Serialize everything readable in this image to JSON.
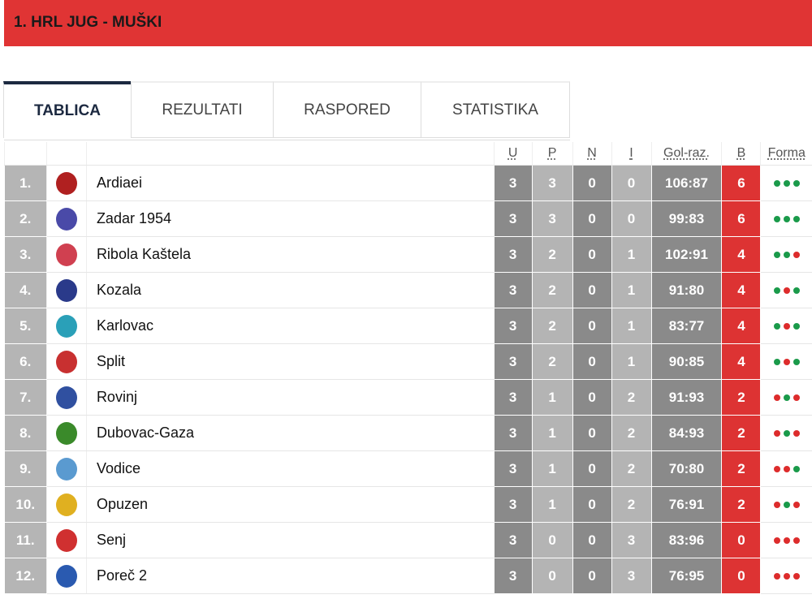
{
  "header": {
    "title": "1. HRL JUG - MUŠKI"
  },
  "tabs": [
    {
      "label": "TABLICA",
      "active": true
    },
    {
      "label": "REZULTATI"
    },
    {
      "label": "RASPORED"
    },
    {
      "label": "STATISTIKA"
    }
  ],
  "columns": {
    "u": "U",
    "p": "P",
    "n": "N",
    "i": "I",
    "goals": "Gol-raz.",
    "b": "B",
    "form": "Forma"
  },
  "colors": {
    "win": "#1a9a4a",
    "loss": "#dd2c2c",
    "points": "#dd3333",
    "header": "#e03434"
  },
  "rows": [
    {
      "rank": "1.",
      "team": "Ardiaei",
      "u": "3",
      "p": "3",
      "n": "0",
      "i": "0",
      "goals": "106:87",
      "b": "6",
      "form": "WWW",
      "logo": "#b02020"
    },
    {
      "rank": "2.",
      "team": "Zadar 1954",
      "u": "3",
      "p": "3",
      "n": "0",
      "i": "0",
      "goals": "99:83",
      "b": "6",
      "form": "WWW",
      "logo": "#4a4aa8"
    },
    {
      "rank": "3.",
      "team": "Ribola Kaštela",
      "u": "3",
      "p": "2",
      "n": "0",
      "i": "1",
      "goals": "102:91",
      "b": "4",
      "form": "WWL",
      "logo": "#d04050"
    },
    {
      "rank": "4.",
      "team": "Kozala",
      "u": "3",
      "p": "2",
      "n": "0",
      "i": "1",
      "goals": "91:80",
      "b": "4",
      "form": "WLW",
      "logo": "#2a3a8a"
    },
    {
      "rank": "5.",
      "team": "Karlovac",
      "u": "3",
      "p": "2",
      "n": "0",
      "i": "1",
      "goals": "83:77",
      "b": "4",
      "form": "WLW",
      "logo": "#2aa0b8"
    },
    {
      "rank": "6.",
      "team": "Split",
      "u": "3",
      "p": "2",
      "n": "0",
      "i": "1",
      "goals": "90:85",
      "b": "4",
      "form": "WLW",
      "logo": "#c83030"
    },
    {
      "rank": "7.",
      "team": "Rovinj",
      "u": "3",
      "p": "1",
      "n": "0",
      "i": "2",
      "goals": "91:93",
      "b": "2",
      "form": "LWL",
      "logo": "#3050a0"
    },
    {
      "rank": "8.",
      "team": "Dubovac-Gaza",
      "u": "3",
      "p": "1",
      "n": "0",
      "i": "2",
      "goals": "84:93",
      "b": "2",
      "form": "LWL",
      "logo": "#3a8a2a"
    },
    {
      "rank": "9.",
      "team": "Vodice",
      "u": "3",
      "p": "1",
      "n": "0",
      "i": "2",
      "goals": "70:80",
      "b": "2",
      "form": "LLW",
      "logo": "#5a9ad0"
    },
    {
      "rank": "10.",
      "team": "Opuzen",
      "u": "3",
      "p": "1",
      "n": "0",
      "i": "2",
      "goals": "76:91",
      "b": "2",
      "form": "LWL",
      "logo": "#e0b020"
    },
    {
      "rank": "11.",
      "team": "Senj",
      "u": "3",
      "p": "0",
      "n": "0",
      "i": "3",
      "goals": "83:96",
      "b": "0",
      "form": "LLL",
      "logo": "#d03030"
    },
    {
      "rank": "12.",
      "team": "Poreč 2",
      "u": "3",
      "p": "0",
      "n": "0",
      "i": "3",
      "goals": "76:95",
      "b": "0",
      "form": "LLL",
      "logo": "#2a5ab0"
    }
  ]
}
